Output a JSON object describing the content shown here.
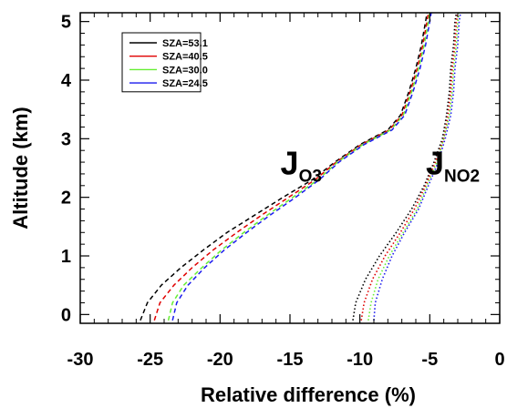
{
  "chart_data": {
    "type": "line",
    "xlabel": "Relative difference (%)",
    "ylabel": "Altitude (km)",
    "xlim": [
      -30,
      0
    ],
    "ylim": [
      -0.15,
      5.15
    ],
    "xticks": [
      -30,
      -25,
      -20,
      -15,
      -10,
      -5,
      0
    ],
    "yticks": [
      0,
      1,
      2,
      3,
      4,
      5
    ],
    "grid": false,
    "legend": {
      "placement": "top-left",
      "entries": [
        {
          "label": "SZA=53.1",
          "color": "#000000"
        },
        {
          "label": "SZA=40.5",
          "color": "#e00000"
        },
        {
          "label": "SZA=30.0",
          "color": "#66ee33"
        },
        {
          "label": "SZA=24.5",
          "color": "#1a1aee"
        }
      ]
    },
    "annotations": [
      {
        "main": "J",
        "sub": "O3",
        "x": -14.9,
        "y": 2.3
      },
      {
        "main": "J",
        "sub": "NO2",
        "x": -4.5,
        "y": 2.3
      }
    ],
    "groups": [
      {
        "label": "JO3",
        "dash": "dashed",
        "series": [
          {
            "name": "SZA=53.1",
            "color": "#000000",
            "points": [
              [
                -25.7,
                -0.1
              ],
              [
                -25.2,
                0.2
              ],
              [
                -24.2,
                0.5
              ],
              [
                -22.8,
                0.8
              ],
              [
                -21.2,
                1.1
              ],
              [
                -19.5,
                1.4
              ],
              [
                -17.5,
                1.7
              ],
              [
                -15.5,
                2.0
              ],
              [
                -13.4,
                2.3
              ],
              [
                -11.8,
                2.6
              ],
              [
                -10.0,
                2.9
              ],
              [
                -8.0,
                3.15
              ],
              [
                -7.1,
                3.4
              ],
              [
                -6.5,
                3.8
              ],
              [
                -6.0,
                4.2
              ],
              [
                -5.6,
                4.6
              ],
              [
                -5.3,
                5.0
              ],
              [
                -5.2,
                5.15
              ]
            ]
          },
          {
            "name": "SZA=40.5",
            "color": "#e00000",
            "points": [
              [
                -24.7,
                -0.1
              ],
              [
                -24.3,
                0.2
              ],
              [
                -23.3,
                0.5
              ],
              [
                -22.0,
                0.8
              ],
              [
                -20.5,
                1.1
              ],
              [
                -18.8,
                1.4
              ],
              [
                -17.0,
                1.7
              ],
              [
                -15.1,
                2.0
              ],
              [
                -13.2,
                2.3
              ],
              [
                -11.7,
                2.6
              ],
              [
                -9.9,
                2.9
              ],
              [
                -7.9,
                3.15
              ],
              [
                -7.0,
                3.4
              ],
              [
                -6.4,
                3.8
              ],
              [
                -5.9,
                4.2
              ],
              [
                -5.5,
                4.6
              ],
              [
                -5.2,
                5.0
              ],
              [
                -5.1,
                5.15
              ]
            ]
          },
          {
            "name": "SZA=30.0",
            "color": "#66ee33",
            "points": [
              [
                -23.7,
                -0.1
              ],
              [
                -23.4,
                0.2
              ],
              [
                -22.6,
                0.5
              ],
              [
                -21.3,
                0.8
              ],
              [
                -19.9,
                1.1
              ],
              [
                -18.3,
                1.4
              ],
              [
                -16.6,
                1.7
              ],
              [
                -14.8,
                2.0
              ],
              [
                -13.0,
                2.3
              ],
              [
                -11.6,
                2.6
              ],
              [
                -9.8,
                2.9
              ],
              [
                -7.8,
                3.15
              ],
              [
                -6.9,
                3.4
              ],
              [
                -6.3,
                3.8
              ],
              [
                -5.8,
                4.2
              ],
              [
                -5.4,
                4.6
              ],
              [
                -5.1,
                5.0
              ],
              [
                -5.0,
                5.15
              ]
            ]
          },
          {
            "name": "SZA=24.5",
            "color": "#1a1aee",
            "points": [
              [
                -23.4,
                -0.1
              ],
              [
                -23.1,
                0.2
              ],
              [
                -22.3,
                0.5
              ],
              [
                -21.1,
                0.8
              ],
              [
                -19.7,
                1.1
              ],
              [
                -18.1,
                1.4
              ],
              [
                -16.4,
                1.7
              ],
              [
                -14.6,
                2.0
              ],
              [
                -12.9,
                2.3
              ],
              [
                -11.5,
                2.6
              ],
              [
                -9.7,
                2.9
              ],
              [
                -7.7,
                3.15
              ],
              [
                -6.8,
                3.4
              ],
              [
                -6.2,
                3.8
              ],
              [
                -5.7,
                4.2
              ],
              [
                -5.3,
                4.6
              ],
              [
                -5.0,
                5.0
              ],
              [
                -4.9,
                5.15
              ]
            ]
          }
        ]
      },
      {
        "label": "JNO2",
        "dash": "dotted",
        "series": [
          {
            "name": "SZA=53.1",
            "color": "#000000",
            "points": [
              [
                -10.5,
                -0.1
              ],
              [
                -10.3,
                0.2
              ],
              [
                -9.6,
                0.6
              ],
              [
                -8.6,
                1.0
              ],
              [
                -7.4,
                1.4
              ],
              [
                -6.3,
                1.8
              ],
              [
                -5.4,
                2.2
              ],
              [
                -4.7,
                2.6
              ],
              [
                -4.1,
                3.0
              ],
              [
                -3.8,
                3.4
              ],
              [
                -3.6,
                3.8
              ],
              [
                -3.5,
                4.2
              ],
              [
                -3.3,
                4.6
              ],
              [
                -3.2,
                5.0
              ],
              [
                -3.1,
                5.15
              ]
            ]
          },
          {
            "name": "SZA=40.5",
            "color": "#e00000",
            "points": [
              [
                -9.9,
                -0.1
              ],
              [
                -9.7,
                0.2
              ],
              [
                -9.1,
                0.6
              ],
              [
                -8.2,
                1.0
              ],
              [
                -7.1,
                1.4
              ],
              [
                -6.1,
                1.8
              ],
              [
                -5.3,
                2.2
              ],
              [
                -4.6,
                2.6
              ],
              [
                -4.0,
                3.0
              ],
              [
                -3.7,
                3.4
              ],
              [
                -3.5,
                3.8
              ],
              [
                -3.4,
                4.2
              ],
              [
                -3.2,
                4.6
              ],
              [
                -3.1,
                5.0
              ],
              [
                -3.0,
                5.15
              ]
            ]
          },
          {
            "name": "SZA=30.0",
            "color": "#66ee33",
            "points": [
              [
                -9.4,
                -0.1
              ],
              [
                -9.2,
                0.2
              ],
              [
                -8.7,
                0.6
              ],
              [
                -7.9,
                1.0
              ],
              [
                -6.9,
                1.4
              ],
              [
                -5.9,
                1.8
              ],
              [
                -5.2,
                2.2
              ],
              [
                -4.5,
                2.6
              ],
              [
                -4.0,
                3.0
              ],
              [
                -3.6,
                3.4
              ],
              [
                -3.4,
                3.8
              ],
              [
                -3.3,
                4.2
              ],
              [
                -3.1,
                4.6
              ],
              [
                -3.0,
                5.0
              ],
              [
                -2.9,
                5.15
              ]
            ]
          },
          {
            "name": "SZA=24.5",
            "color": "#1a1aee",
            "points": [
              [
                -9.0,
                -0.1
              ],
              [
                -8.9,
                0.2
              ],
              [
                -8.4,
                0.6
              ],
              [
                -7.7,
                1.0
              ],
              [
                -6.8,
                1.4
              ],
              [
                -5.8,
                1.8
              ],
              [
                -5.1,
                2.2
              ],
              [
                -4.4,
                2.6
              ],
              [
                -3.9,
                3.0
              ],
              [
                -3.5,
                3.4
              ],
              [
                -3.3,
                3.8
              ],
              [
                -3.2,
                4.2
              ],
              [
                -3.0,
                4.6
              ],
              [
                -2.9,
                5.0
              ],
              [
                -2.8,
                5.15
              ]
            ]
          }
        ]
      }
    ]
  }
}
